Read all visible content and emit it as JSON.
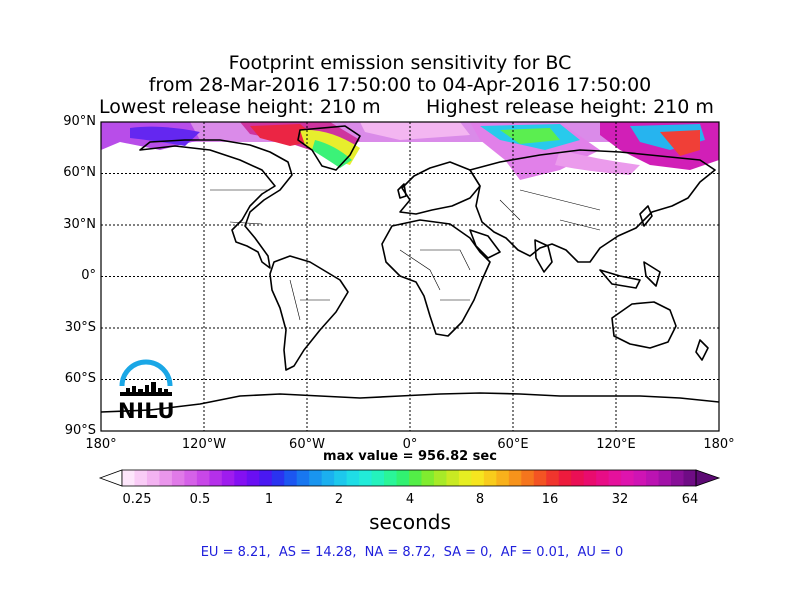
{
  "title": {
    "line1": "Footprint emission sensitivity for BC",
    "line2": "from 28-Mar-2016 17:50:00 to 04-Apr-2016 17:50:00",
    "release_low": "Lowest release height: 210 m",
    "release_high": "Highest release height: 210 m"
  },
  "map": {
    "lat_labels": [
      "90°N",
      "60°N",
      "30°N",
      "0°",
      "30°S",
      "60°S",
      "90°S"
    ],
    "lon_labels": [
      "180°",
      "120°W",
      "60°W",
      "0°",
      "60°E",
      "120°E",
      "180°"
    ],
    "grid": true,
    "max_value_text": "max value = 956.82 sec"
  },
  "colorbar": {
    "ticks": [
      "0.25",
      "0.5",
      "1",
      "2",
      "4",
      "8",
      "16",
      "32",
      "64"
    ],
    "unit": "seconds",
    "colors": [
      "#fde6fb",
      "#f9ccf6",
      "#f3b3f1",
      "#ea96ec",
      "#e07ae8",
      "#d561e8",
      "#c847e8",
      "#b530ea",
      "#9f1cee",
      "#8410f2",
      "#6a0ff3",
      "#4a18f2",
      "#2a33f0",
      "#1c56f1",
      "#1877f0",
      "#1995ef",
      "#1bb0ef",
      "#1dc8ec",
      "#1fdde6",
      "#22ecd9",
      "#24f2bd",
      "#2af598",
      "#31f271",
      "#53ee47",
      "#80ec2f",
      "#a7ea28",
      "#c9ea23",
      "#e6ee22",
      "#f6e51f",
      "#f8cc1c",
      "#f8b11b",
      "#f7931b",
      "#f5751d",
      "#f35423",
      "#f0352d",
      "#ed1b3d",
      "#ea0f55",
      "#e90c6e",
      "#e80d86",
      "#e5119c",
      "#de14ae",
      "#cf14b4",
      "#bb13b2",
      "#a211a8",
      "#880f98",
      "#6f0c85"
    ],
    "under_color": "#ffffff",
    "over_color": "#5d0a74"
  },
  "stats": {
    "items": [
      "EU = 8.21,",
      "AS = 14.28,",
      "NA = 8.72,",
      "SA = 0,",
      "AF = 0.01,",
      "AU = 0"
    ]
  },
  "logo": {
    "text": "NILU"
  }
}
